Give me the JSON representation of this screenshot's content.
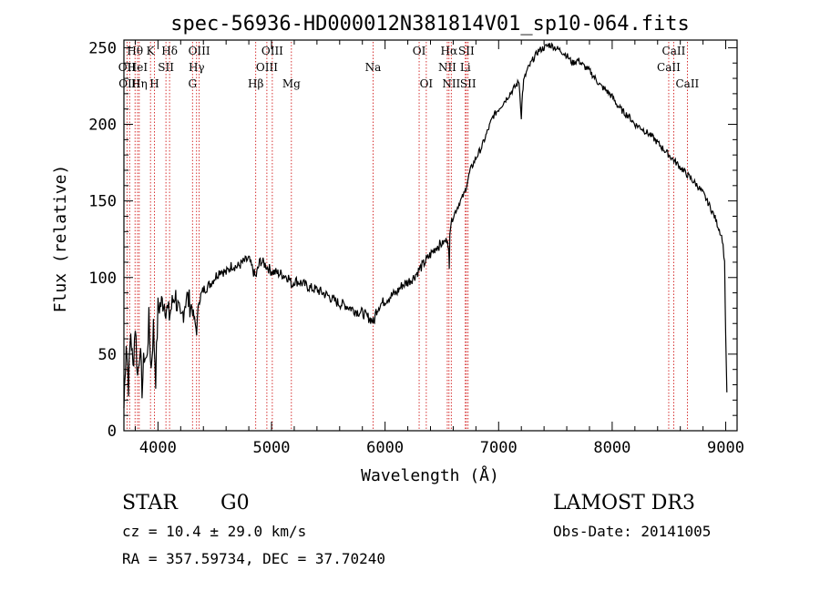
{
  "chart_data": {
    "type": "line",
    "title": "spec-56936-HD000012N381814V01_sp10-064.fits",
    "xlabel": "Wavelength (Å)",
    "ylabel": "Flux (relative)",
    "xlim": [
      3700,
      9100
    ],
    "ylim": [
      0,
      255
    ],
    "xticks": [
      4000,
      5000,
      6000,
      7000,
      8000,
      9000
    ],
    "yticks": [
      0,
      50,
      100,
      150,
      200,
      250
    ],
    "tick_labels_x": [
      "4000",
      "5000",
      "6000",
      "7000",
      "8000",
      "9000"
    ],
    "tick_labels_y": [
      "0",
      "50",
      "100",
      "150",
      "200",
      "250"
    ],
    "series": [
      {
        "name": "flux",
        "x": [
          3700,
          3720,
          3740,
          3760,
          3780,
          3800,
          3820,
          3840,
          3860,
          3880,
          3900,
          3920,
          3940,
          3960,
          3980,
          4000,
          4050,
          4100,
          4150,
          4200,
          4250,
          4300,
          4340,
          4360,
          4400,
          4450,
          4500,
          4550,
          4600,
          4650,
          4700,
          4750,
          4800,
          4860,
          4900,
          4950,
          5000,
          5050,
          5100,
          5150,
          5180,
          5200,
          5250,
          5300,
          5350,
          5400,
          5450,
          5500,
          5550,
          5600,
          5650,
          5700,
          5750,
          5800,
          5850,
          5890,
          5900,
          5920,
          5950,
          6000,
          6050,
          6100,
          6150,
          6200,
          6250,
          6300,
          6350,
          6400,
          6450,
          6500,
          6550,
          6560,
          6565,
          6570,
          6580,
          6600,
          6650,
          6700,
          6750,
          6800,
          6850,
          6900,
          6950,
          7000,
          7050,
          7100,
          7150,
          7180,
          7200,
          7210,
          7220,
          7250,
          7300,
          7350,
          7400,
          7450,
          7500,
          7550,
          7600,
          7650,
          7700,
          7750,
          7800,
          7850,
          7900,
          7950,
          8000,
          8050,
          8100,
          8150,
          8200,
          8250,
          8300,
          8350,
          8400,
          8450,
          8500,
          8550,
          8600,
          8650,
          8700,
          8750,
          8800,
          8850,
          8900,
          8950,
          8970,
          8990,
          9000,
          9010
        ],
        "values": [
          15,
          60,
          30,
          65,
          40,
          70,
          35,
          55,
          28,
          50,
          45,
          72,
          40,
          68,
          35,
          80,
          85,
          75,
          90,
          70,
          88,
          80,
          65,
          85,
          92,
          95,
          100,
          105,
          103,
          108,
          107,
          110,
          112,
          100,
          111,
          108,
          104,
          103,
          102,
          100,
          95,
          98,
          97,
          95,
          93,
          92,
          90,
          88,
          85,
          83,
          82,
          80,
          78,
          77,
          74,
          72,
          70,
          78,
          82,
          85,
          88,
          90,
          95,
          97,
          100,
          105,
          110,
          115,
          120,
          122,
          125,
          118,
          105,
          130,
          135,
          140,
          148,
          155,
          170,
          178,
          185,
          195,
          205,
          210,
          215,
          220,
          225,
          228,
          205,
          220,
          228,
          235,
          242,
          248,
          250,
          252,
          250,
          248,
          245,
          240,
          242,
          238,
          235,
          230,
          225,
          222,
          218,
          212,
          208,
          205,
          200,
          198,
          195,
          192,
          188,
          184,
          180,
          176,
          172,
          168,
          164,
          160,
          155,
          148,
          140,
          130,
          125,
          110,
          60,
          25
        ],
        "color": "#000000"
      }
    ],
    "line_markers": [
      {
        "label": "Hθ",
        "x": 3798,
        "row": 0
      },
      {
        "label": "OII",
        "x": 3727,
        "row": 1
      },
      {
        "label": "OIII",
        "x": 3750,
        "row": 2
      },
      {
        "label": "K",
        "x": 3934,
        "row": 0
      },
      {
        "label": "HeI",
        "x": 3820,
        "row": 1
      },
      {
        "label": "Hη",
        "x": 3835,
        "row": 2
      },
      {
        "label": "SII",
        "x": 4070,
        "row": 1
      },
      {
        "label": "H",
        "x": 3969,
        "row": 2
      },
      {
        "label": "Hδ",
        "x": 4102,
        "row": 0
      },
      {
        "label": "OIII",
        "x": 4363,
        "row": 0
      },
      {
        "label": "Hγ",
        "x": 4340,
        "row": 1
      },
      {
        "label": "G",
        "x": 4304,
        "row": 2
      },
      {
        "label": "OIII",
        "x": 5007,
        "row": 0
      },
      {
        "label": "OIII",
        "x": 4959,
        "row": 1
      },
      {
        "label": "Hβ",
        "x": 4861,
        "row": 2
      },
      {
        "label": "Mg",
        "x": 5175,
        "row": 2
      },
      {
        "label": "Na",
        "x": 5894,
        "row": 1
      },
      {
        "label": "OI",
        "x": 6300,
        "row": 0
      },
      {
        "label": "OI",
        "x": 6363,
        "row": 2
      },
      {
        "label": "Hα",
        "x": 6563,
        "row": 0
      },
      {
        "label": "SII",
        "x": 6716,
        "row": 0
      },
      {
        "label": "NII",
        "x": 6548,
        "row": 1
      },
      {
        "label": "Li",
        "x": 6707,
        "row": 1
      },
      {
        "label": "NII",
        "x": 6583,
        "row": 2
      },
      {
        "label": "SII",
        "x": 6731,
        "row": 2
      },
      {
        "label": "CaII",
        "x": 8542,
        "row": 0
      },
      {
        "label": "CaII",
        "x": 8498,
        "row": 1
      },
      {
        "label": "CaII",
        "x": 8662,
        "row": 2
      }
    ],
    "annotations": {
      "object_class": "STAR",
      "subclass": "G0",
      "redshift": "cz = 10.4 ± 29.0 km/s",
      "coords": "RA = 357.59734, DEC =  37.70240",
      "survey": "LAMOST DR3",
      "obs_date": "Obs-Date: 20141005"
    }
  },
  "colors": {
    "spectrum": "#000000",
    "line_marker": "#cc0000",
    "axis": "#000000"
  }
}
